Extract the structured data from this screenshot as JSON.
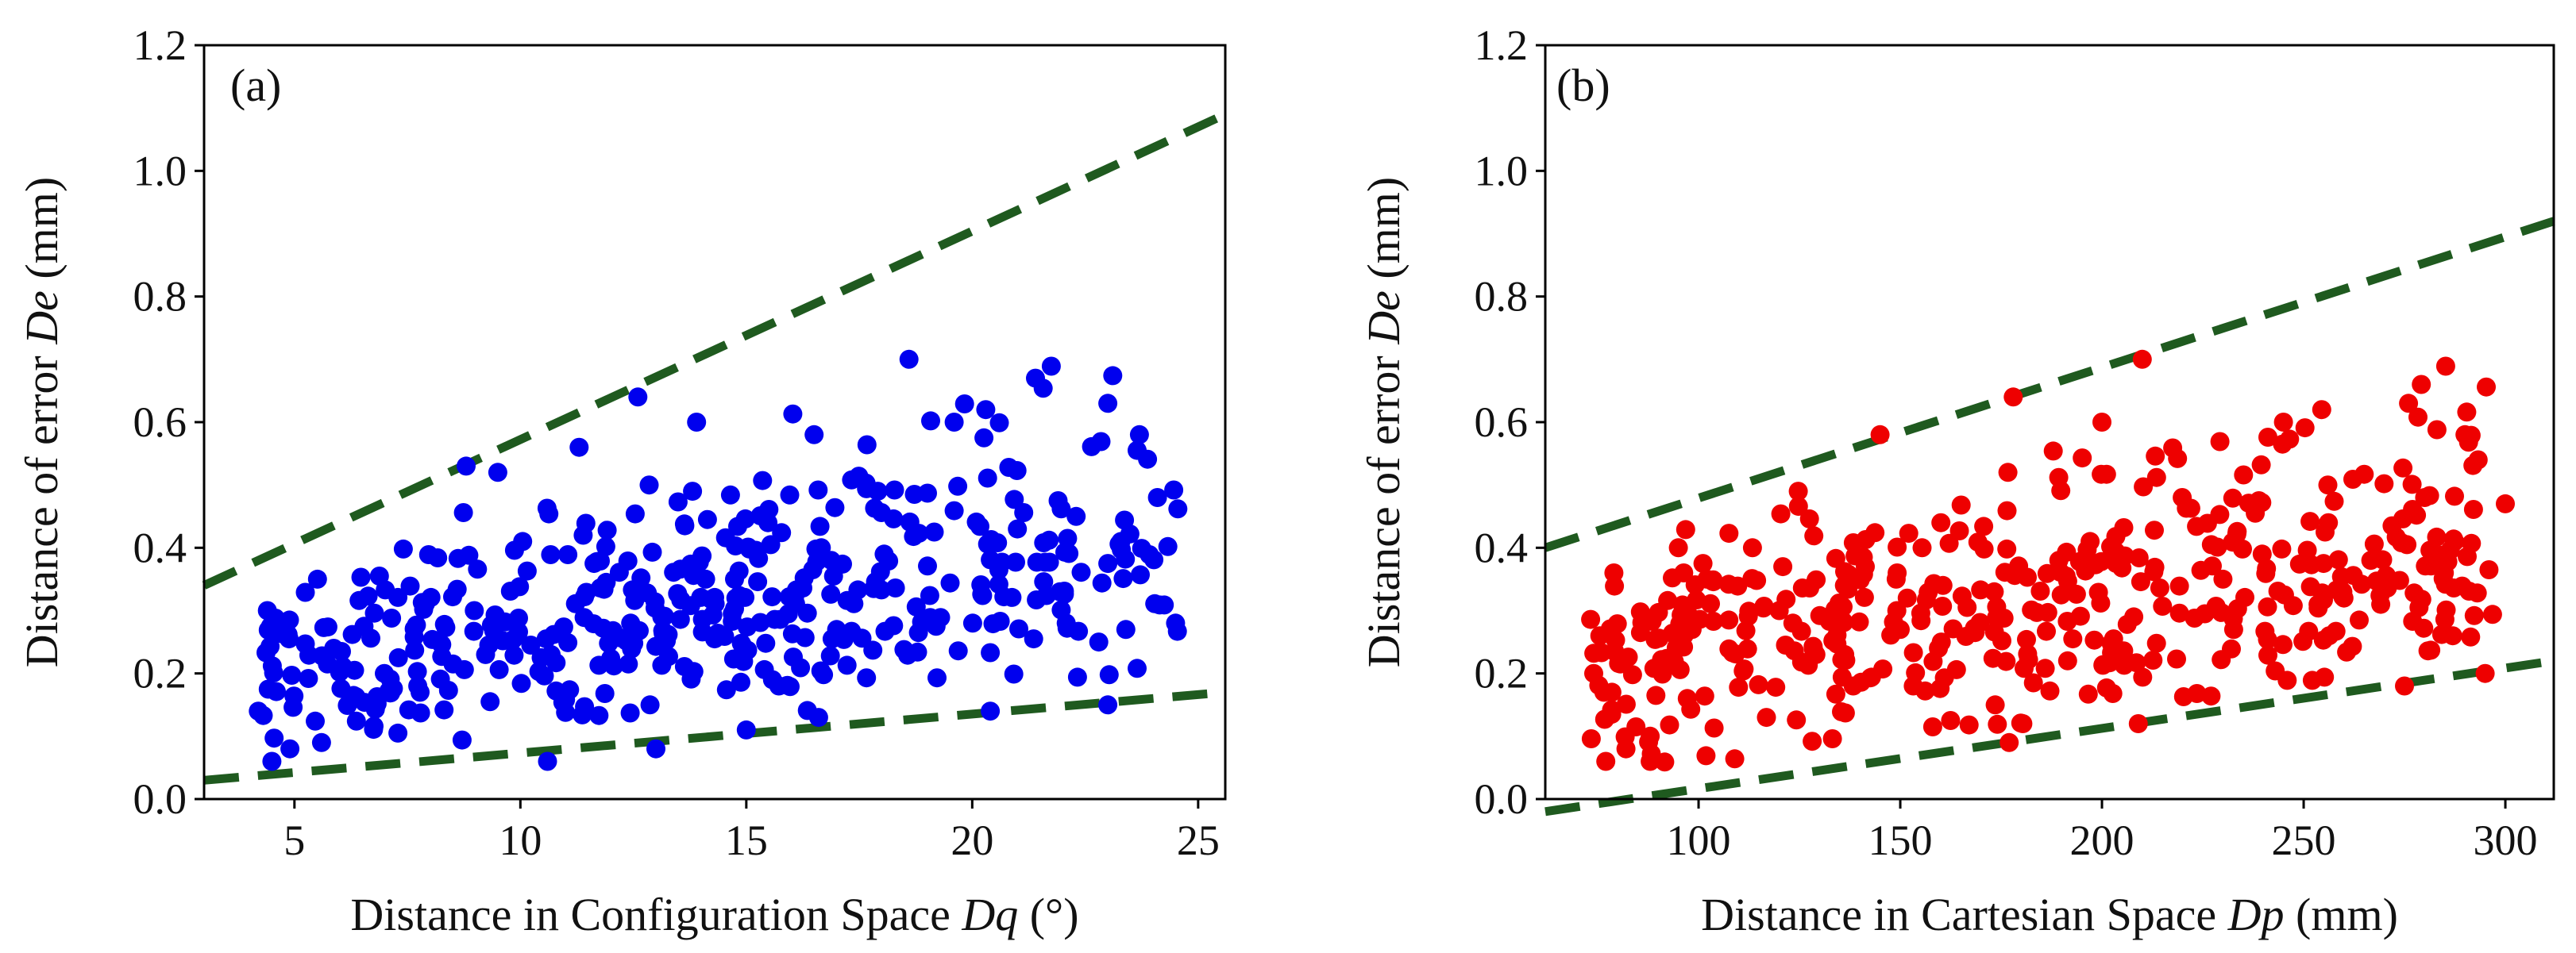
{
  "chart_data": [
    {
      "type": "scatter",
      "panel_label": "(a)",
      "xlabel_prefix": "Distance in Configuration Space ",
      "xlabel_symbol": "Dq",
      "xlabel_suffix": " (°)",
      "ylabel_prefix": "Distance of error ",
      "ylabel_symbol": "De",
      "ylabel_suffix": " (mm)",
      "xlim": [
        3,
        25.6
      ],
      "ylim": [
        0,
        1.2
      ],
      "xticks": [
        5,
        10,
        15,
        20,
        25
      ],
      "yticks": [
        0.0,
        0.2,
        0.4,
        0.6,
        0.8,
        1.0,
        1.2
      ],
      "xtick_labels": [
        "5",
        "10",
        "15",
        "20",
        "25"
      ],
      "ytick_labels": [
        "0.0",
        "0.2",
        "0.4",
        "0.6",
        "0.8",
        "1.0",
        "1.2"
      ],
      "grid": false,
      "point_color": "#0000ee",
      "line_color": "#1f5a1f",
      "bound_lines": [
        {
          "name": "upper-bound",
          "x": [
            3,
            25.6
          ],
          "y": [
            0.34,
            1.09
          ]
        },
        {
          "name": "lower-bound",
          "x": [
            3,
            25.6
          ],
          "y": [
            0.03,
            0.17
          ]
        }
      ],
      "n_points": 460,
      "seed": 17,
      "points": [
        [
          18.6,
          0.7
        ],
        [
          12.6,
          0.64
        ],
        [
          21.4,
          0.67
        ],
        [
          23.0,
          0.63
        ],
        [
          8.8,
          0.53
        ],
        [
          11.3,
          0.56
        ],
        [
          13.9,
          0.6
        ],
        [
          16.5,
          0.58
        ],
        [
          19.6,
          0.6
        ],
        [
          20.3,
          0.62
        ],
        [
          23.7,
          0.58
        ],
        [
          22.3,
          0.45
        ],
        [
          24.1,
          0.48
        ],
        [
          24.5,
          0.28
        ],
        [
          23.4,
          0.27
        ],
        [
          22.8,
          0.25
        ],
        [
          20.4,
          0.14
        ],
        [
          23.0,
          0.15
        ],
        [
          13.0,
          0.08
        ],
        [
          10.6,
          0.06
        ],
        [
          4.5,
          0.06
        ],
        [
          5.6,
          0.09
        ],
        [
          4.9,
          0.08
        ],
        [
          4.2,
          0.14
        ],
        [
          4.4,
          0.3
        ],
        [
          15.0,
          0.11
        ],
        [
          16.6,
          0.13
        ],
        [
          9.5,
          0.52
        ],
        [
          14.1,
          0.35
        ],
        [
          21.0,
          0.43
        ]
      ]
    },
    {
      "type": "scatter",
      "panel_label": "(b)",
      "xlabel_prefix": "Distance in Cartesian Space ",
      "xlabel_symbol": "Dp",
      "xlabel_suffix": " (mm)",
      "ylabel_prefix": "Distance of error ",
      "ylabel_symbol": "De",
      "ylabel_suffix": " (mm)",
      "xlim": [
        62,
        312
      ],
      "ylim": [
        0,
        1.2
      ],
      "xticks": [
        100,
        150,
        200,
        250,
        300
      ],
      "yticks": [
        0.0,
        0.2,
        0.4,
        0.6,
        0.8,
        1.0,
        1.2
      ],
      "xtick_labels": [
        "100",
        "150",
        "200",
        "250",
        "300"
      ],
      "ytick_labels": [
        "0.0",
        "0.2",
        "0.4",
        "0.6",
        "0.8",
        "1.0",
        "1.2"
      ],
      "grid": false,
      "point_color": "#ee0000",
      "line_color": "#1f5a1f",
      "bound_lines": [
        {
          "name": "upper-bound",
          "x": [
            62,
            312
          ],
          "y": [
            0.4,
            0.92
          ]
        },
        {
          "name": "lower-bound",
          "x": [
            62,
            312
          ],
          "y": [
            -0.02,
            0.22
          ]
        }
      ],
      "n_points": 470,
      "seed": 29,
      "points": [
        [
          210,
          0.7
        ],
        [
          178,
          0.64
        ],
        [
          145,
          0.58
        ],
        [
          276,
          0.63
        ],
        [
          290,
          0.58
        ],
        [
          245,
          0.6
        ],
        [
          200,
          0.6
        ],
        [
          77,
          0.06
        ],
        [
          82,
          0.08
        ],
        [
          88,
          0.06
        ],
        [
          88,
          0.1
        ],
        [
          79,
          0.36
        ],
        [
          74,
          0.2
        ],
        [
          177,
          0.09
        ],
        [
          209,
          0.12
        ],
        [
          295,
          0.2
        ],
        [
          275,
          0.18
        ],
        [
          300,
          0.47
        ],
        [
          280,
          0.48
        ],
        [
          256,
          0.5
        ],
        [
          150,
          0.27
        ],
        [
          230,
          0.35
        ],
        [
          120,
          0.3
        ],
        [
          260,
          0.32
        ],
        [
          95,
          0.4
        ]
      ]
    }
  ]
}
